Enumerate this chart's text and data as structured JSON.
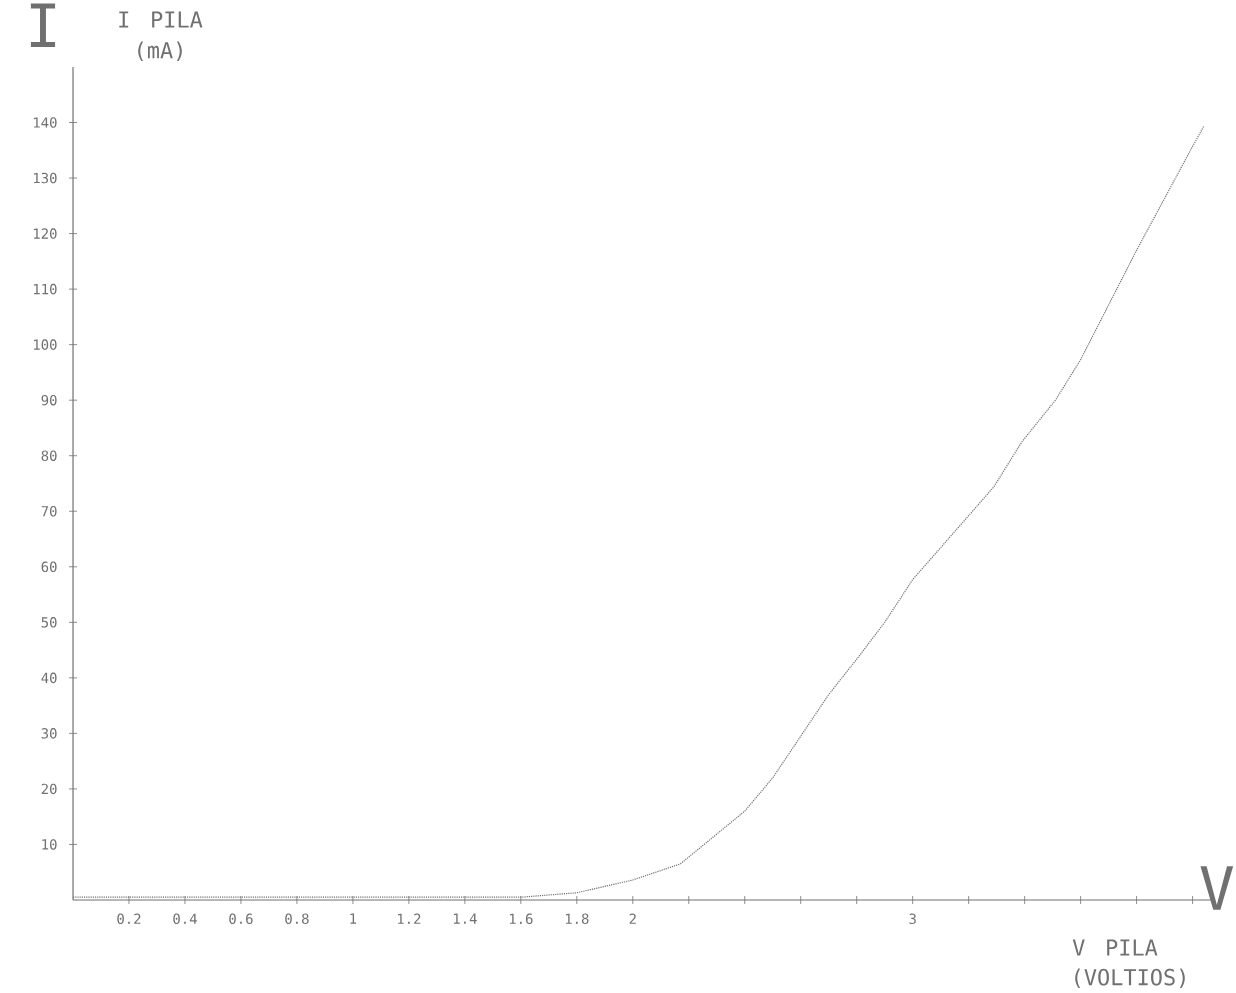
{
  "chart_data": {
    "type": "line",
    "xlabel": "V PILA",
    "ylabel": "I PILA",
    "annotations": [
      "I",
      "V",
      "(mA)",
      "(VOLTIOS)"
    ],
    "x": [
      0,
      0.4,
      0.8,
      1.2,
      1.6,
      1.8,
      2.0,
      2.17,
      2.4,
      2.5,
      2.6,
      2.7,
      2.81,
      2.9,
      3.0,
      3.29,
      3.39,
      3.51,
      3.6,
      3.8,
      4.0,
      4.04
    ],
    "series": [
      {
        "color": "#707070",
        "values": [
          0.5,
          0.5,
          0.5,
          0.5,
          0.5,
          1.3,
          3.6,
          6.5,
          16,
          22,
          29.5,
          37,
          44,
          50,
          57.7,
          74.4,
          82.5,
          90,
          97.3,
          117,
          135.7,
          139.3
        ]
      }
    ],
    "xlim": [
      0,
      4.08
    ],
    "ylim": [
      0,
      150
    ],
    "xticks": [
      0.2,
      0.4,
      0.6,
      0.8,
      1,
      1.2,
      1.4,
      1.6,
      1.8,
      2,
      {
        "value": 2.2,
        "label": null
      },
      {
        "value": 2.4,
        "label": null
      },
      {
        "value": 2.6,
        "label": null
      },
      {
        "value": 2.8,
        "label": null
      },
      3,
      {
        "value": 3.2,
        "label": null
      },
      {
        "value": 3.4,
        "label": null
      },
      {
        "value": 3.6,
        "label": null
      },
      {
        "value": 3.8,
        "label": null
      },
      {
        "value": 4.0,
        "label": null
      }
    ],
    "yticks": [
      10,
      20,
      30,
      40,
      50,
      60,
      70,
      80,
      90,
      100,
      110,
      120,
      130,
      140
    ],
    "grid": false,
    "legend": false,
    "marker": "none",
    "line_style": "dotted"
  }
}
